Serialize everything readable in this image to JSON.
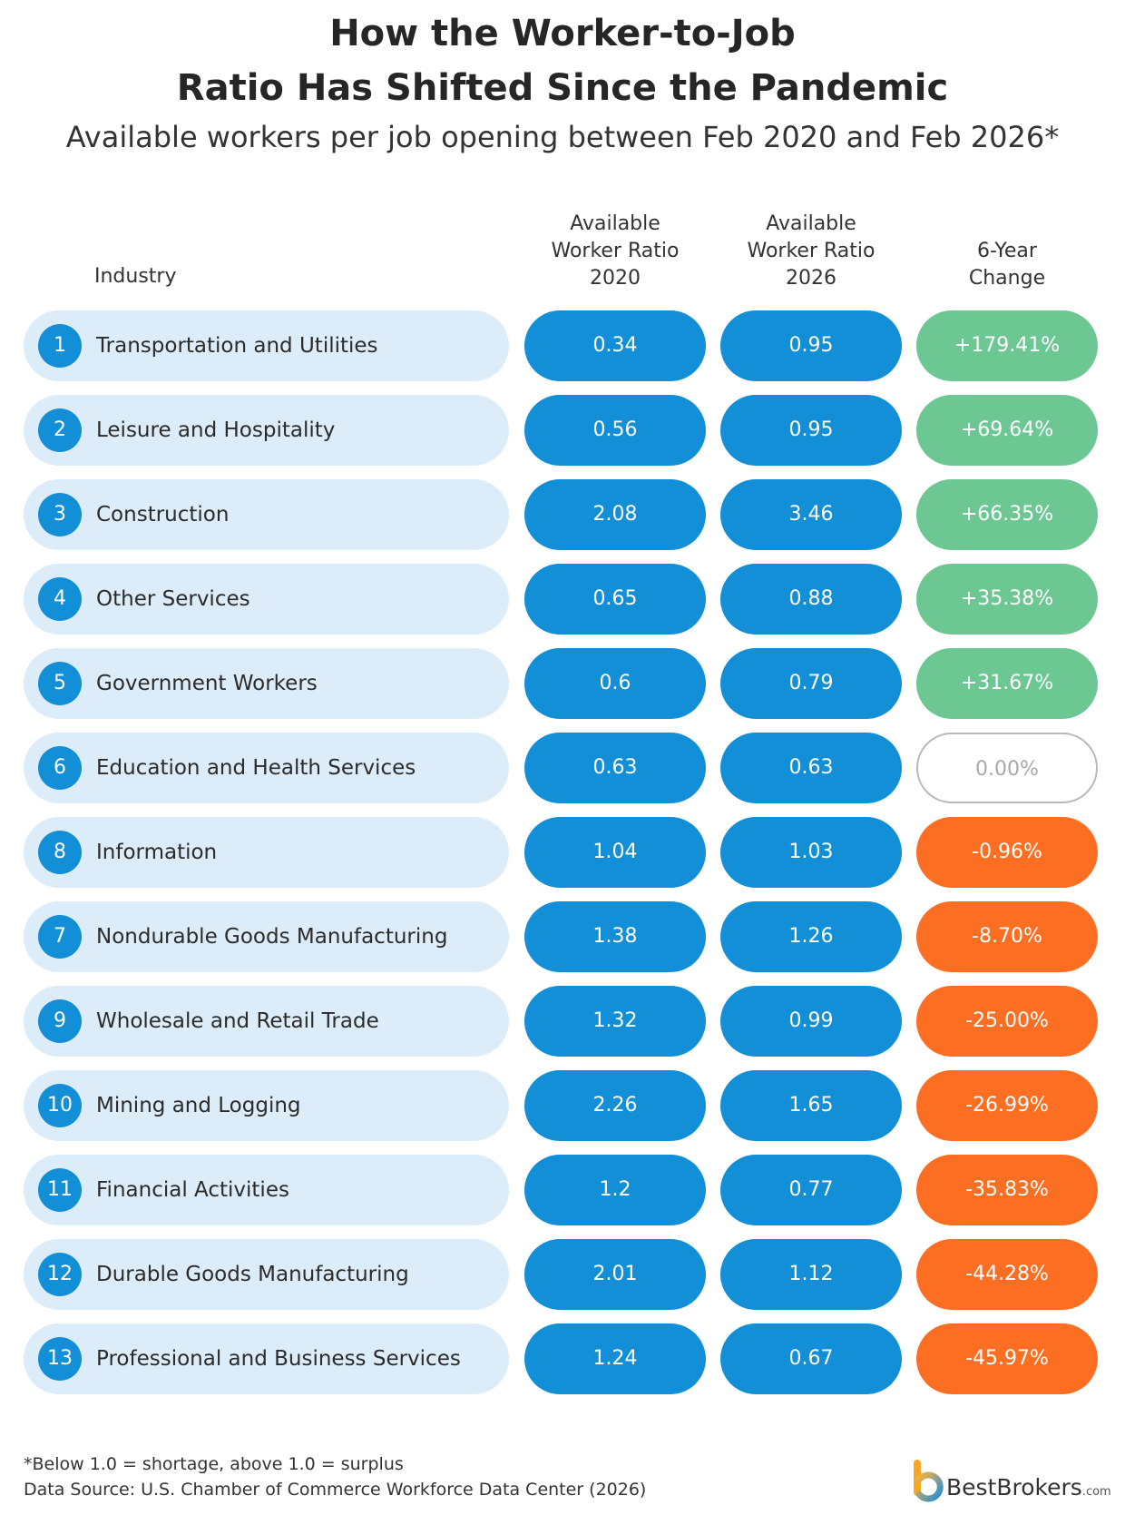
{
  "title_line1": "How the Worker-to-Job",
  "title_line2": "Ratio Has Shifted Since the Pandemic",
  "subtitle": "Available workers per job opening between Feb 2020 and Feb 2026*",
  "headers": {
    "industry": "Industry",
    "ratio_2020": [
      "Available",
      "Worker Ratio",
      "2020"
    ],
    "ratio_2026": [
      "Available",
      "Worker Ratio",
      "2026"
    ],
    "change": [
      "6-Year",
      "Change"
    ]
  },
  "chart_data": {
    "type": "table",
    "columns": [
      "Industry",
      "Available Worker Ratio 2020",
      "Available Worker Ratio 2026",
      "6-Year Change"
    ],
    "rows": [
      {
        "rank": "1",
        "industry": "Transportation and Utilities",
        "ratio_2020": "0.34",
        "ratio_2026": "0.95",
        "change": "+179.41%",
        "status": "positive"
      },
      {
        "rank": "2",
        "industry": "Leisure and Hospitality",
        "ratio_2020": "0.56",
        "ratio_2026": "0.95",
        "change": "+69.64%",
        "status": "positive"
      },
      {
        "rank": "3",
        "industry": "Construction",
        "ratio_2020": "2.08",
        "ratio_2026": "3.46",
        "change": "+66.35%",
        "status": "positive"
      },
      {
        "rank": "4",
        "industry": "Other Services",
        "ratio_2020": "0.65",
        "ratio_2026": "0.88",
        "change": "+35.38%",
        "status": "positive"
      },
      {
        "rank": "5",
        "industry": "Government Workers",
        "ratio_2020": "0.6",
        "ratio_2026": "0.79",
        "change": "+31.67%",
        "status": "positive"
      },
      {
        "rank": "6",
        "industry": "Education and Health Services",
        "ratio_2020": "0.63",
        "ratio_2026": "0.63",
        "change": "0.00%",
        "status": "zero"
      },
      {
        "rank": "8",
        "industry": "Information",
        "ratio_2020": "1.04",
        "ratio_2026": "1.03",
        "change": "-0.96%",
        "status": "negative"
      },
      {
        "rank": "7",
        "industry": "Nondurable Goods Manufacturing",
        "ratio_2020": "1.38",
        "ratio_2026": "1.26",
        "change": "-8.70%",
        "status": "negative"
      },
      {
        "rank": "9",
        "industry": "Wholesale and Retail Trade",
        "ratio_2020": "1.32",
        "ratio_2026": "0.99",
        "change": "-25.00%",
        "status": "negative"
      },
      {
        "rank": "10",
        "industry": "Mining and Logging",
        "ratio_2020": "2.26",
        "ratio_2026": "1.65",
        "change": "-26.99%",
        "status": "negative"
      },
      {
        "rank": "11",
        "industry": "Financial Activities",
        "ratio_2020": "1.2",
        "ratio_2026": "0.77",
        "change": "-35.83%",
        "status": "negative"
      },
      {
        "rank": "12",
        "industry": "Durable Goods Manufacturing",
        "ratio_2020": "2.01",
        "ratio_2026": "1.12",
        "change": "-44.28%",
        "status": "negative"
      },
      {
        "rank": "13",
        "industry": "Professional and Business Services",
        "ratio_2020": "1.24",
        "ratio_2026": "0.67",
        "change": "-45.97%",
        "status": "negative"
      }
    ]
  },
  "colors": {
    "ratio_pill": "#128fd6",
    "industry_pill": "#dcedf9",
    "positive": "#6cc793",
    "negative": "#fc6e22",
    "zero_border": "#b8b8b8"
  },
  "footnote": "*Below 1.0 = shortage, above 1.0 = surplus",
  "source": "Data Source: U.S. Chamber of Commerce Workforce Data Center (2026)",
  "brand": {
    "name": "BestBrokers",
    "suffix": ".com",
    "icon": "bestbrokers-logo-icon"
  }
}
